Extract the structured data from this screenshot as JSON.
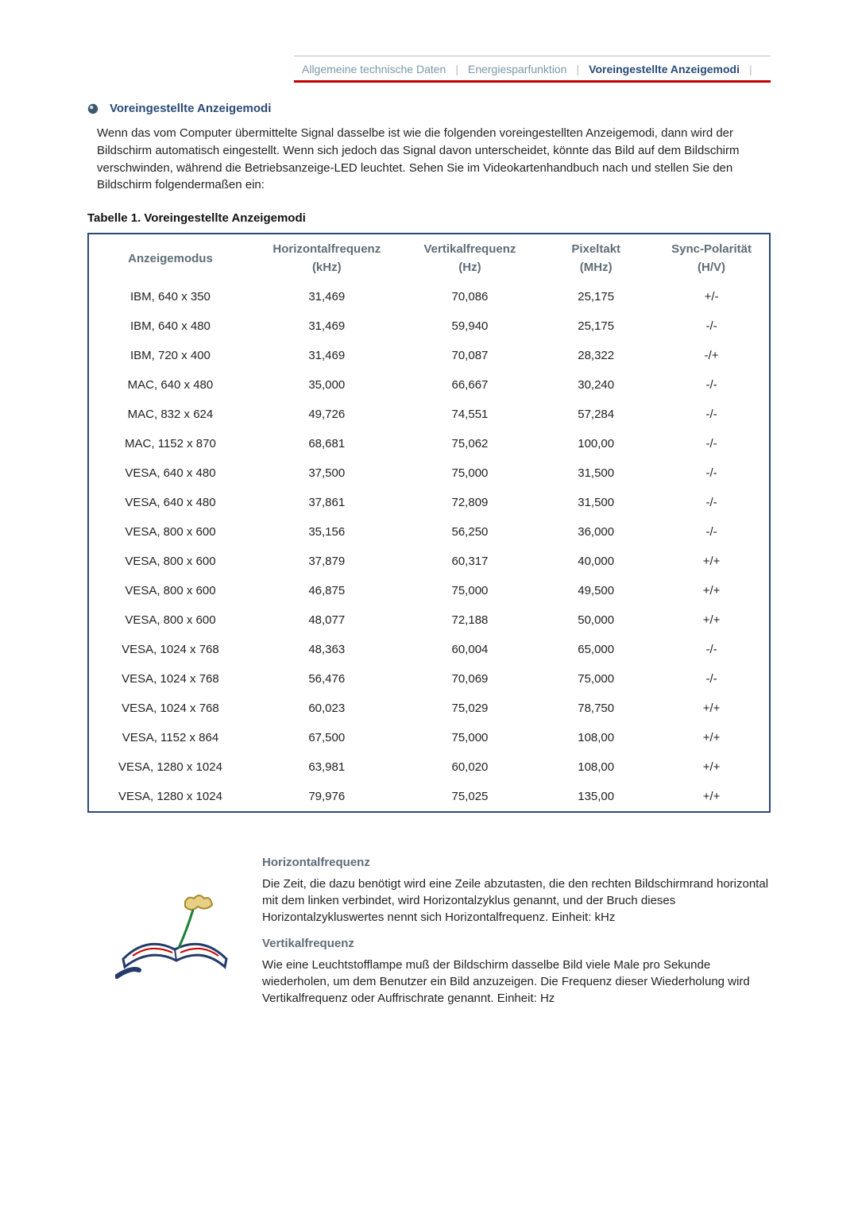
{
  "colors": {
    "accent_red": "#c30000",
    "heading_blue": "#2a4a76",
    "muted_label": "#5f6d78",
    "tab_inactive": "#7a97a8",
    "table_border": "#2a4a76",
    "body_text": "#222222",
    "background": "#ffffff",
    "divider_gray": "#bfbfbf"
  },
  "tabs": {
    "items": [
      {
        "label": "Allgemeine technische Daten",
        "active": false
      },
      {
        "label": "Energiesparfunktion",
        "active": false
      },
      {
        "label": "Voreingestellte Anzeigemodi",
        "active": true
      }
    ],
    "separator": "|"
  },
  "section": {
    "title": "Voreingestellte Anzeigemodi",
    "intro": "Wenn das vom Computer übermittelte Signal dasselbe ist wie die folgenden voreingestellten Anzeigemodi, dann wird der Bildschirm automatisch eingestellt. Wenn sich jedoch das Signal davon unterscheidet, könnte das Bild auf dem Bildschirm verschwinden, während die Betriebsanzeige-LED leuchtet. Sehen Sie im Videokartenhandbuch nach und stellen Sie den Bildschirm folgendermaßen ein:"
  },
  "table": {
    "title": "Tabelle 1. Voreingestellte Anzeigemodi",
    "columns": [
      {
        "label": "Anzeigemodus",
        "sub": ""
      },
      {
        "label": "Horizontalfrequenz",
        "sub": "(kHz)"
      },
      {
        "label": "Vertikalfrequenz",
        "sub": "(Hz)"
      },
      {
        "label": "Pixeltakt",
        "sub": "(MHz)"
      },
      {
        "label": "Sync-Polarität",
        "sub": "(H/V)"
      }
    ],
    "col_widths_pct": [
      24,
      22,
      20,
      17,
      17
    ],
    "rows": [
      [
        "IBM, 640 x 350",
        "31,469",
        "70,086",
        "25,175",
        "+/-"
      ],
      [
        "IBM, 640 x 480",
        "31,469",
        "59,940",
        "25,175",
        "-/-"
      ],
      [
        "IBM, 720 x 400",
        "31,469",
        "70,087",
        "28,322",
        "-/+"
      ],
      [
        "MAC, 640 x 480",
        "35,000",
        "66,667",
        "30,240",
        "-/-"
      ],
      [
        "MAC, 832 x 624",
        "49,726",
        "74,551",
        "57,284",
        "-/-"
      ],
      [
        "MAC, 1152 x 870",
        "68,681",
        "75,062",
        "100,00",
        "-/-"
      ],
      [
        "VESA, 640 x 480",
        "37,500",
        "75,000",
        "31,500",
        "-/-"
      ],
      [
        "VESA, 640 x 480",
        "37,861",
        "72,809",
        "31,500",
        "-/-"
      ],
      [
        "VESA, 800 x 600",
        "35,156",
        "56,250",
        "36,000",
        "-/-"
      ],
      [
        "VESA, 800 x 600",
        "37,879",
        "60,317",
        "40,000",
        "+/+"
      ],
      [
        "VESA, 800 x 600",
        "46,875",
        "75,000",
        "49,500",
        "+/+"
      ],
      [
        "VESA, 800 x 600",
        "48,077",
        "72,188",
        "50,000",
        "+/+"
      ],
      [
        "VESA, 1024 x 768",
        "48,363",
        "60,004",
        "65,000",
        "-/-"
      ],
      [
        "VESA, 1024 x 768",
        "56,476",
        "70,069",
        "75,000",
        "-/-"
      ],
      [
        "VESA, 1024 x 768",
        "60,023",
        "75,029",
        "78,750",
        "+/+"
      ],
      [
        "VESA, 1152 x 864",
        "67,500",
        "75,000",
        "108,00",
        "+/+"
      ],
      [
        "VESA, 1280 x 1024",
        "63,981",
        "60,020",
        "108,00",
        "+/+"
      ],
      [
        "VESA, 1280 x 1024",
        "79,976",
        "75,025",
        "135,00",
        "+/+"
      ]
    ]
  },
  "definitions": {
    "items": [
      {
        "title": "Horizontalfrequenz",
        "text": "Die Zeit, die dazu benötigt wird eine Zeile abzutasten, die den rechten Bildschirmrand horizontal mit dem linken verbindet, wird Horizontalzyklus genannt, und der Bruch dieses Horizontalzykluswertes nennt sich Horizontalfrequenz. Einheit: kHz"
      },
      {
        "title": "Vertikalfrequenz",
        "text": "Wie eine Leuchtstofflampe muß der Bildschirm dasselbe Bild viele Male pro Sekunde wiederholen, um dem Benutzer ein Bild anzuzeigen. Die Frequenz dieser Wiederholung wird Vertikalfrequenz oder Auffrischrate genannt. Einheit: Hz"
      }
    ]
  }
}
